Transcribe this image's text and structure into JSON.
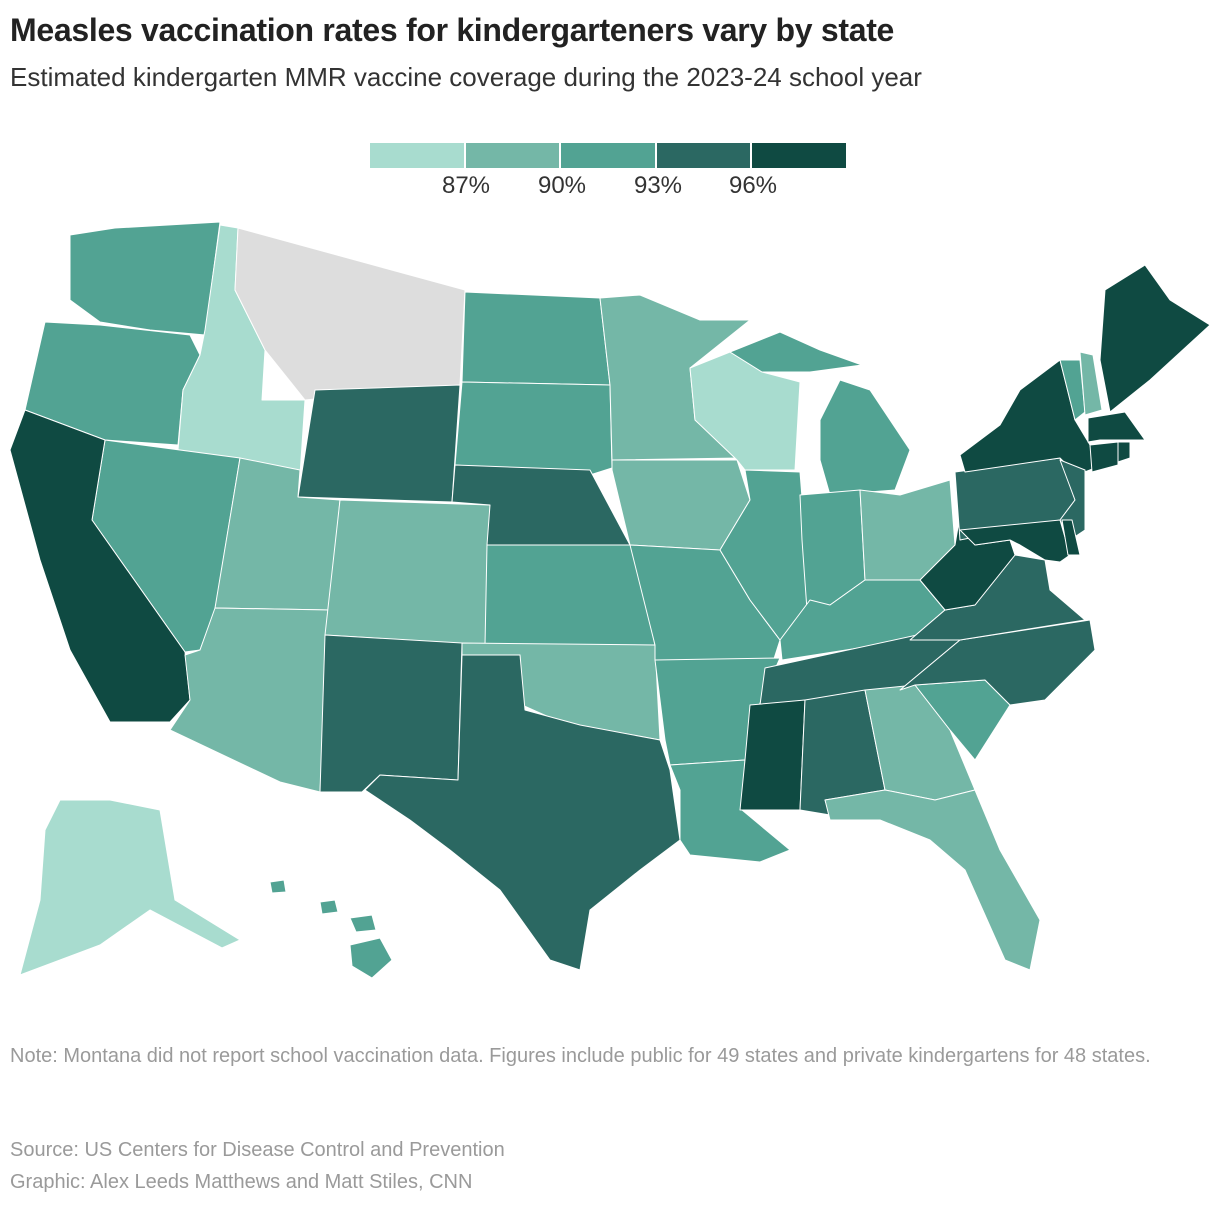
{
  "title": "Measles vaccination rates for kindergarteners vary by state",
  "subtitle": "Estimated kindergarten MMR vaccine coverage during the 2023-24 school year",
  "legend": {
    "colors": [
      "#a8dccf",
      "#74b7a7",
      "#52a393",
      "#2b6862",
      "#0f4a42"
    ],
    "labels": [
      "87%",
      "90%",
      "93%",
      "96%"
    ],
    "no_data_color": "#dddddd"
  },
  "states": {
    "WA": 2,
    "OR": 2,
    "CA": 4,
    "NV": 2,
    "ID": 0,
    "MT": null,
    "WY": 3,
    "UT": 1,
    "AZ": 1,
    "CO": 1,
    "NM": 3,
    "ND": 2,
    "SD": 2,
    "NE": 3,
    "KS": 2,
    "OK": 1,
    "TX": 3,
    "MN": 1,
    "IA": 1,
    "MO": 2,
    "AR": 2,
    "LA": 2,
    "WI": 0,
    "IL": 2,
    "MI": 2,
    "IN": 2,
    "OH": 1,
    "KY": 2,
    "TN": 3,
    "MS": 4,
    "AL": 3,
    "GA": 1,
    "FL": 1,
    "SC": 2,
    "NC": 3,
    "VA": 3,
    "WV": 4,
    "PA": 3,
    "NY": 4,
    "NJ": 3,
    "MD": 4,
    "DE": 4,
    "VT": 2,
    "NH": 1,
    "ME": 4,
    "MA": 4,
    "CT": 4,
    "RI": 4,
    "AK": 0,
    "HI": 2
  },
  "note": "Note: Montana did not report school vaccination data. Figures include public for 49 states and private kindergartens for 48 states.",
  "source": "Source: US Centers for Disease Control and Prevention",
  "graphic": "Graphic: Alex Leeds Matthews and Matt Stiles, CNN"
}
